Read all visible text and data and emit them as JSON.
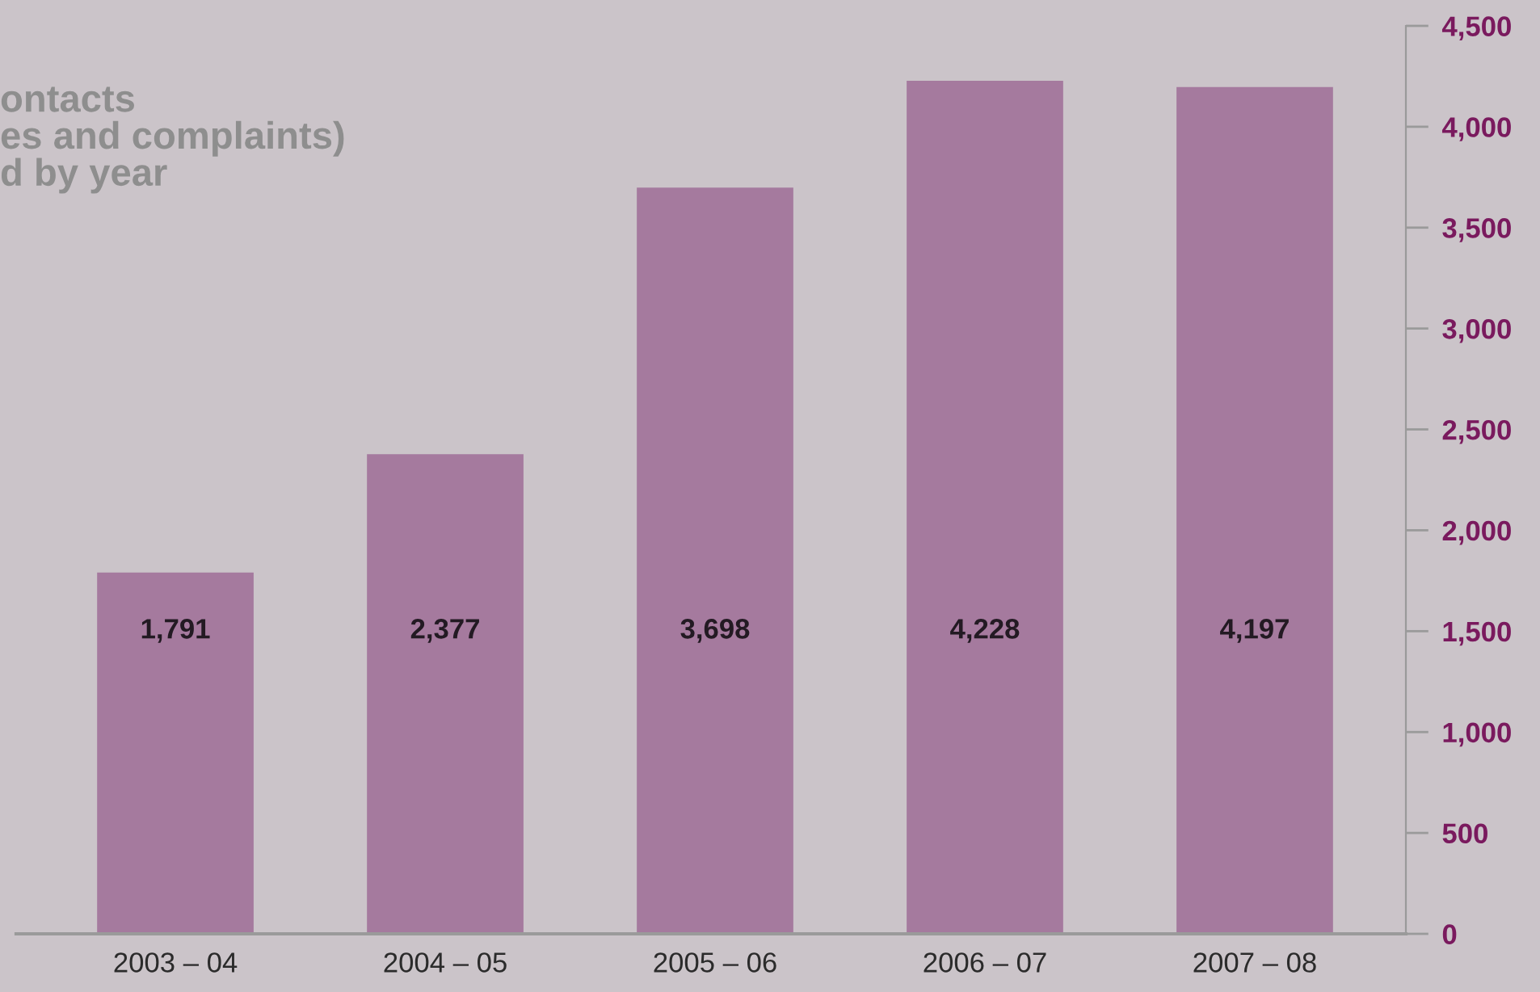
{
  "chart_data": {
    "type": "bar",
    "title": "ontacts\nes and complaints)\nd by year",
    "categories": [
      "2003 – 04",
      "2004 – 05",
      "2005 – 06",
      "2006 – 07",
      "2007 – 08"
    ],
    "values": [
      1791,
      2377,
      3698,
      4228,
      4197
    ],
    "color": "#a57a9e",
    "value_labels": [
      "1,791",
      "2,377",
      "3,698",
      "4,228",
      "4,197"
    ],
    "ylim": [
      0,
      4500
    ],
    "yticks": [
      {
        "value": 0,
        "label": "0"
      },
      {
        "value": 500,
        "label": "500"
      },
      {
        "value": 1000,
        "label": "1,000"
      },
      {
        "value": 1500,
        "label": "1,500"
      },
      {
        "value": 2000,
        "label": "2,000"
      },
      {
        "value": 2500,
        "label": "2,500"
      },
      {
        "value": 3000,
        "label": "3,000"
      },
      {
        "value": 3500,
        "label": "3,500"
      },
      {
        "value": 4000,
        "label": "4,000"
      },
      {
        "value": 4500,
        "label": "4,500"
      }
    ],
    "grid": false
  }
}
